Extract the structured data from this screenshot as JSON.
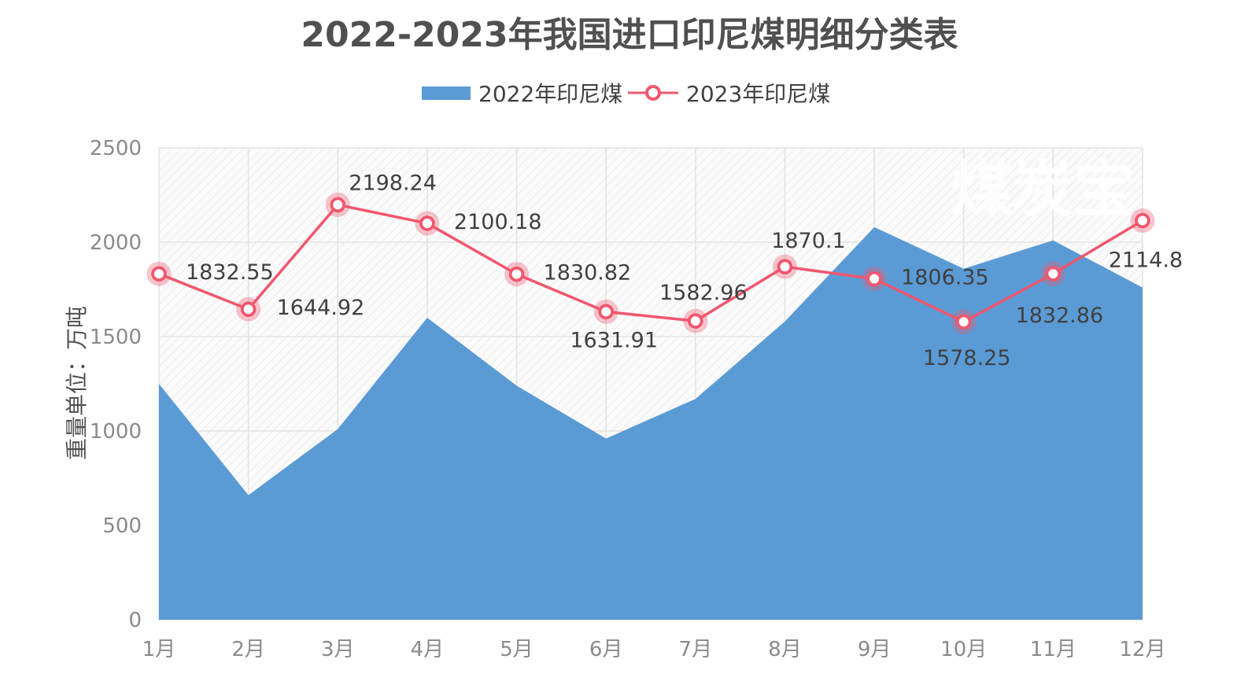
{
  "colors": {
    "area_2022": "#5b9bd5",
    "line_2023": "#f0576e",
    "grid": "#e2e2e2",
    "tick": "#8a8a8a",
    "hatch_bg": "#fafafa"
  },
  "watermark": "煤炭宝",
  "chart_data": {
    "type": "area",
    "title": "2022-2023年我国进口印尼煤明细分类表",
    "ylabel": "重量单位：万吨",
    "xlabel": "",
    "categories": [
      "1月",
      "2月",
      "3月",
      "4月",
      "5月",
      "6月",
      "7月",
      "8月",
      "9月",
      "10月",
      "11月",
      "12月"
    ],
    "ylim": [
      0,
      2500
    ],
    "yticks": [
      "0",
      "500",
      "1000",
      "1500",
      "2000",
      "2500"
    ],
    "grid": true,
    "legend_position": "top",
    "series": [
      {
        "name": "2022年印尼煤",
        "type": "area",
        "values": [
          1250,
          660,
          1010,
          1600,
          1240,
          960,
          1170,
          1580,
          2080,
          1860,
          2010,
          1760
        ],
        "labels": []
      },
      {
        "name": "2023年印尼煤",
        "type": "line",
        "values": [
          1832.55,
          1644.92,
          2198.24,
          2100.18,
          1830.82,
          1631.91,
          1582.96,
          1870.1,
          1806.35,
          1578.25,
          1832.86,
          2114.8
        ],
        "labels": [
          "1832.55",
          "1644.92",
          "2198.24",
          "2100.18",
          "1830.82",
          "1631.91",
          "1582.96",
          "1870.1",
          "1806.35",
          "1578.25",
          "1832.86",
          "2114.8"
        ]
      }
    ]
  }
}
